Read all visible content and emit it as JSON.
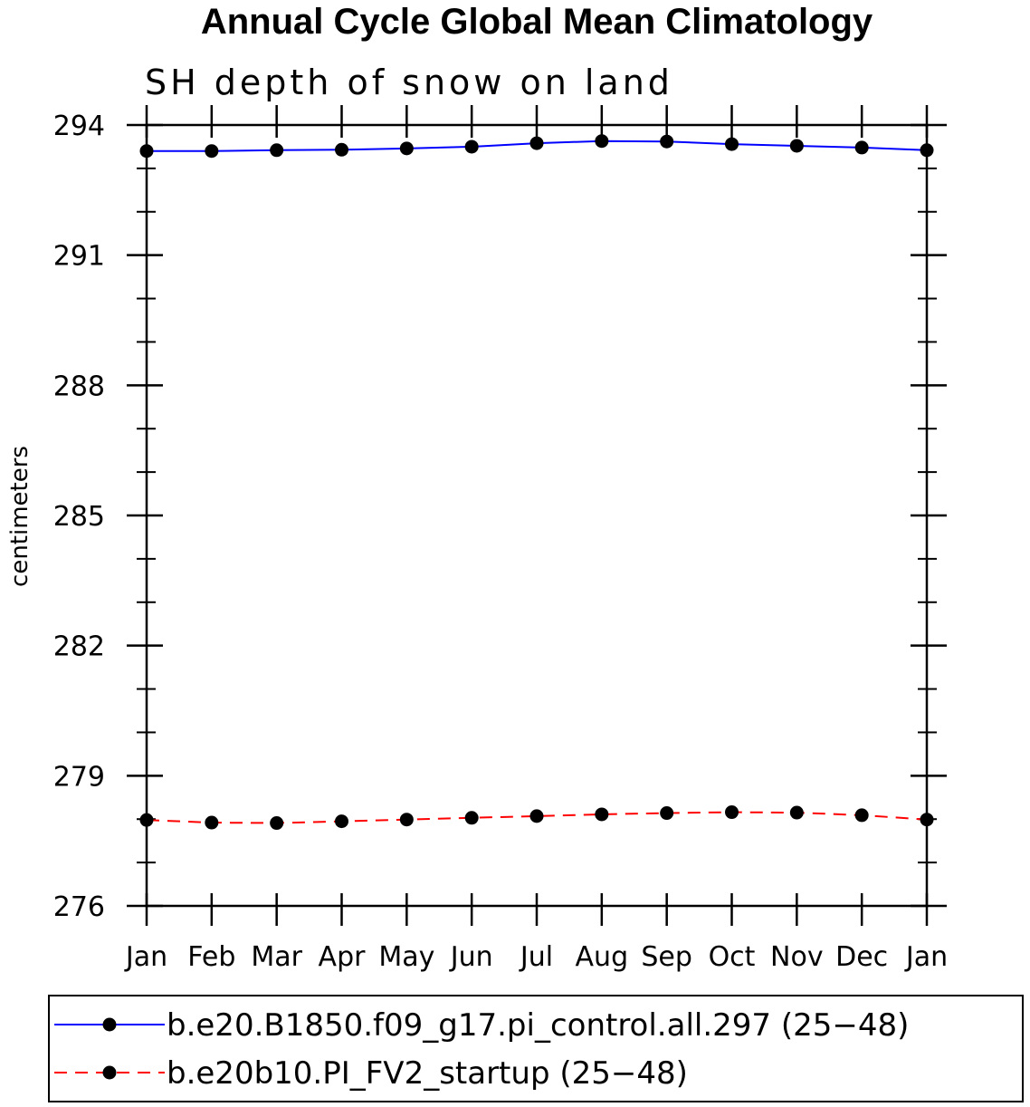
{
  "chart_data": {
    "type": "line",
    "title": "Annual Cycle Global Mean Climatology",
    "subtitle": "SH depth of snow on land",
    "xlabel": "",
    "ylabel": "centimeters",
    "ylim": [
      276,
      294
    ],
    "yticks": [
      276,
      279,
      282,
      285,
      288,
      291,
      294
    ],
    "yticklabels": [
      "276",
      "279",
      "282",
      "285",
      "288",
      "291",
      "294"
    ],
    "categories": [
      "Jan",
      "Feb",
      "Mar",
      "Apr",
      "May",
      "Jun",
      "Jul",
      "Aug",
      "Sep",
      "Oct",
      "Nov",
      "Dec",
      "Jan"
    ],
    "grid": false,
    "legend_placement": "bottom",
    "series": [
      {
        "name": "b.e20.B1850.f09_g17.pi_control.all.297 (25−48)",
        "color": "#0000ff",
        "line_style": "solid",
        "marker": "filled-circle",
        "values": [
          293.4,
          293.4,
          293.42,
          293.43,
          293.46,
          293.5,
          293.58,
          293.63,
          293.62,
          293.56,
          293.52,
          293.48,
          293.42
        ]
      },
      {
        "name": "b.e20b10.PI_FV2_startup (25−48)",
        "color": "#ff0000",
        "line_style": "dashed",
        "marker": "filled-circle",
        "values": [
          277.98,
          277.92,
          277.91,
          277.95,
          277.99,
          278.03,
          278.07,
          278.11,
          278.14,
          278.16,
          278.15,
          278.09,
          277.99
        ]
      }
    ]
  }
}
